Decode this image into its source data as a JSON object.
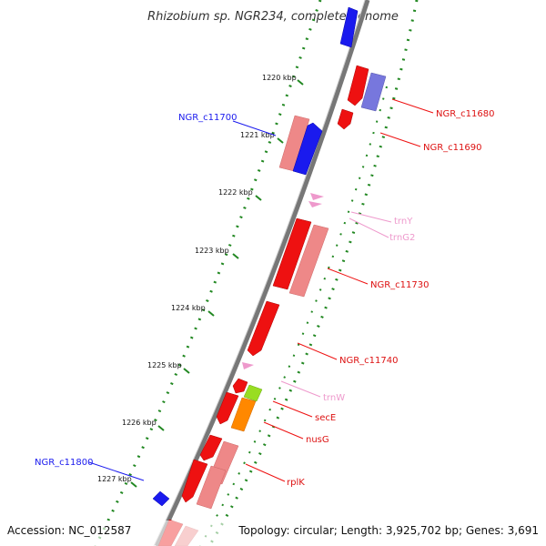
{
  "title": "Rhizobium sp. NGR234, complete genome",
  "accession": "Accession: NC_012587",
  "topology": "Topology: circular; Length: 3,925,702 bp; Genes: 3,691",
  "colors": {
    "backbone": "#777777",
    "dots": "#228822",
    "cds_forward": "#ee1111",
    "cds_forward_light": "#ee8888",
    "cds_reverse": "#1a1aee",
    "cds_reverse_light": "#7777dd",
    "trna": "#ee99cc",
    "secE": "#99dd22",
    "nusG": "#ff8800"
  },
  "ticks": [
    "1220 kbp",
    "1221 kbp",
    "1222 kbp",
    "1223 kbp",
    "1224 kbp",
    "1225 kbp",
    "1226 kbp",
    "1227 kbp"
  ],
  "genes": {
    "NGR_c11680": "NGR_c11680",
    "NGR_c11690": "NGR_c11690",
    "NGR_c11700": "NGR_c11700",
    "trnY": "trnY",
    "trnG2": "trnG2",
    "NGR_c11730": "NGR_c11730",
    "NGR_c11740": "NGR_c11740",
    "trnW": "trnW",
    "secE": "secE",
    "nusG": "nusG",
    "rplK": "rplK",
    "NGR_c11800": "NGR_c11800"
  }
}
